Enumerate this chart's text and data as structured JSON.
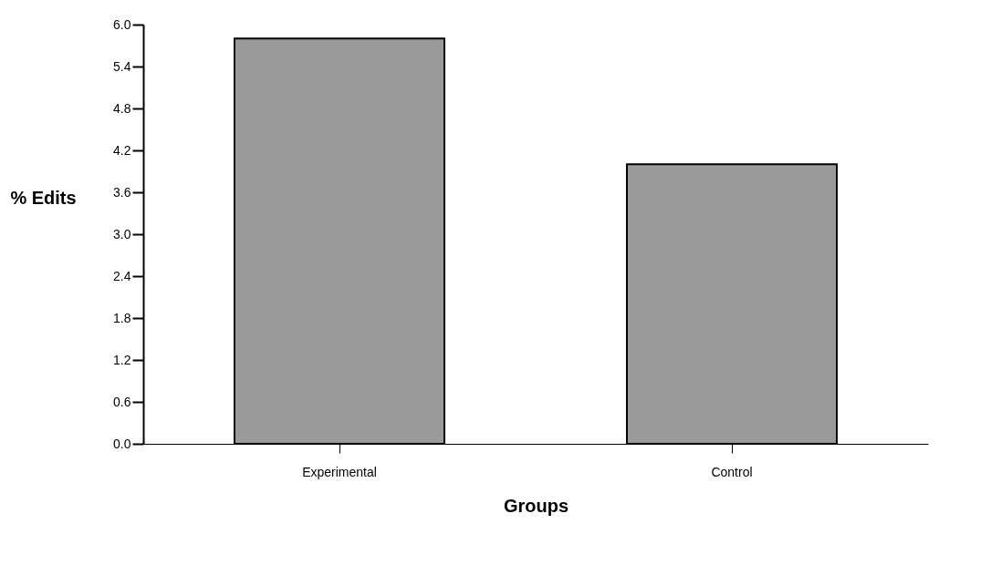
{
  "chart_data": {
    "type": "bar",
    "xlabel": "Groups",
    "ylabel": "% Edits",
    "categories": [
      "Experimental",
      "Control"
    ],
    "values": [
      5.8,
      4.0
    ],
    "color": "#9a9a9a",
    "ylim": [
      0,
      6.0
    ],
    "yticks": [
      {
        "value": 0,
        "label": "0.0"
      },
      {
        "value": 0.6,
        "label": "0.6"
      },
      {
        "value": 1.2,
        "label": "1.2"
      },
      {
        "value": 1.8,
        "label": "1.8"
      },
      {
        "value": 2.4,
        "label": "2.4"
      },
      {
        "value": 3.0,
        "label": "3.0"
      },
      {
        "value": 3.6,
        "label": "3.6"
      },
      {
        "value": 4.2,
        "label": "4.2"
      },
      {
        "value": 4.8,
        "label": "4.8"
      },
      {
        "value": 5.4,
        "label": "5.4"
      },
      {
        "value": 6.0,
        "label": "6.0"
      }
    ],
    "grid": false,
    "legend": false
  }
}
